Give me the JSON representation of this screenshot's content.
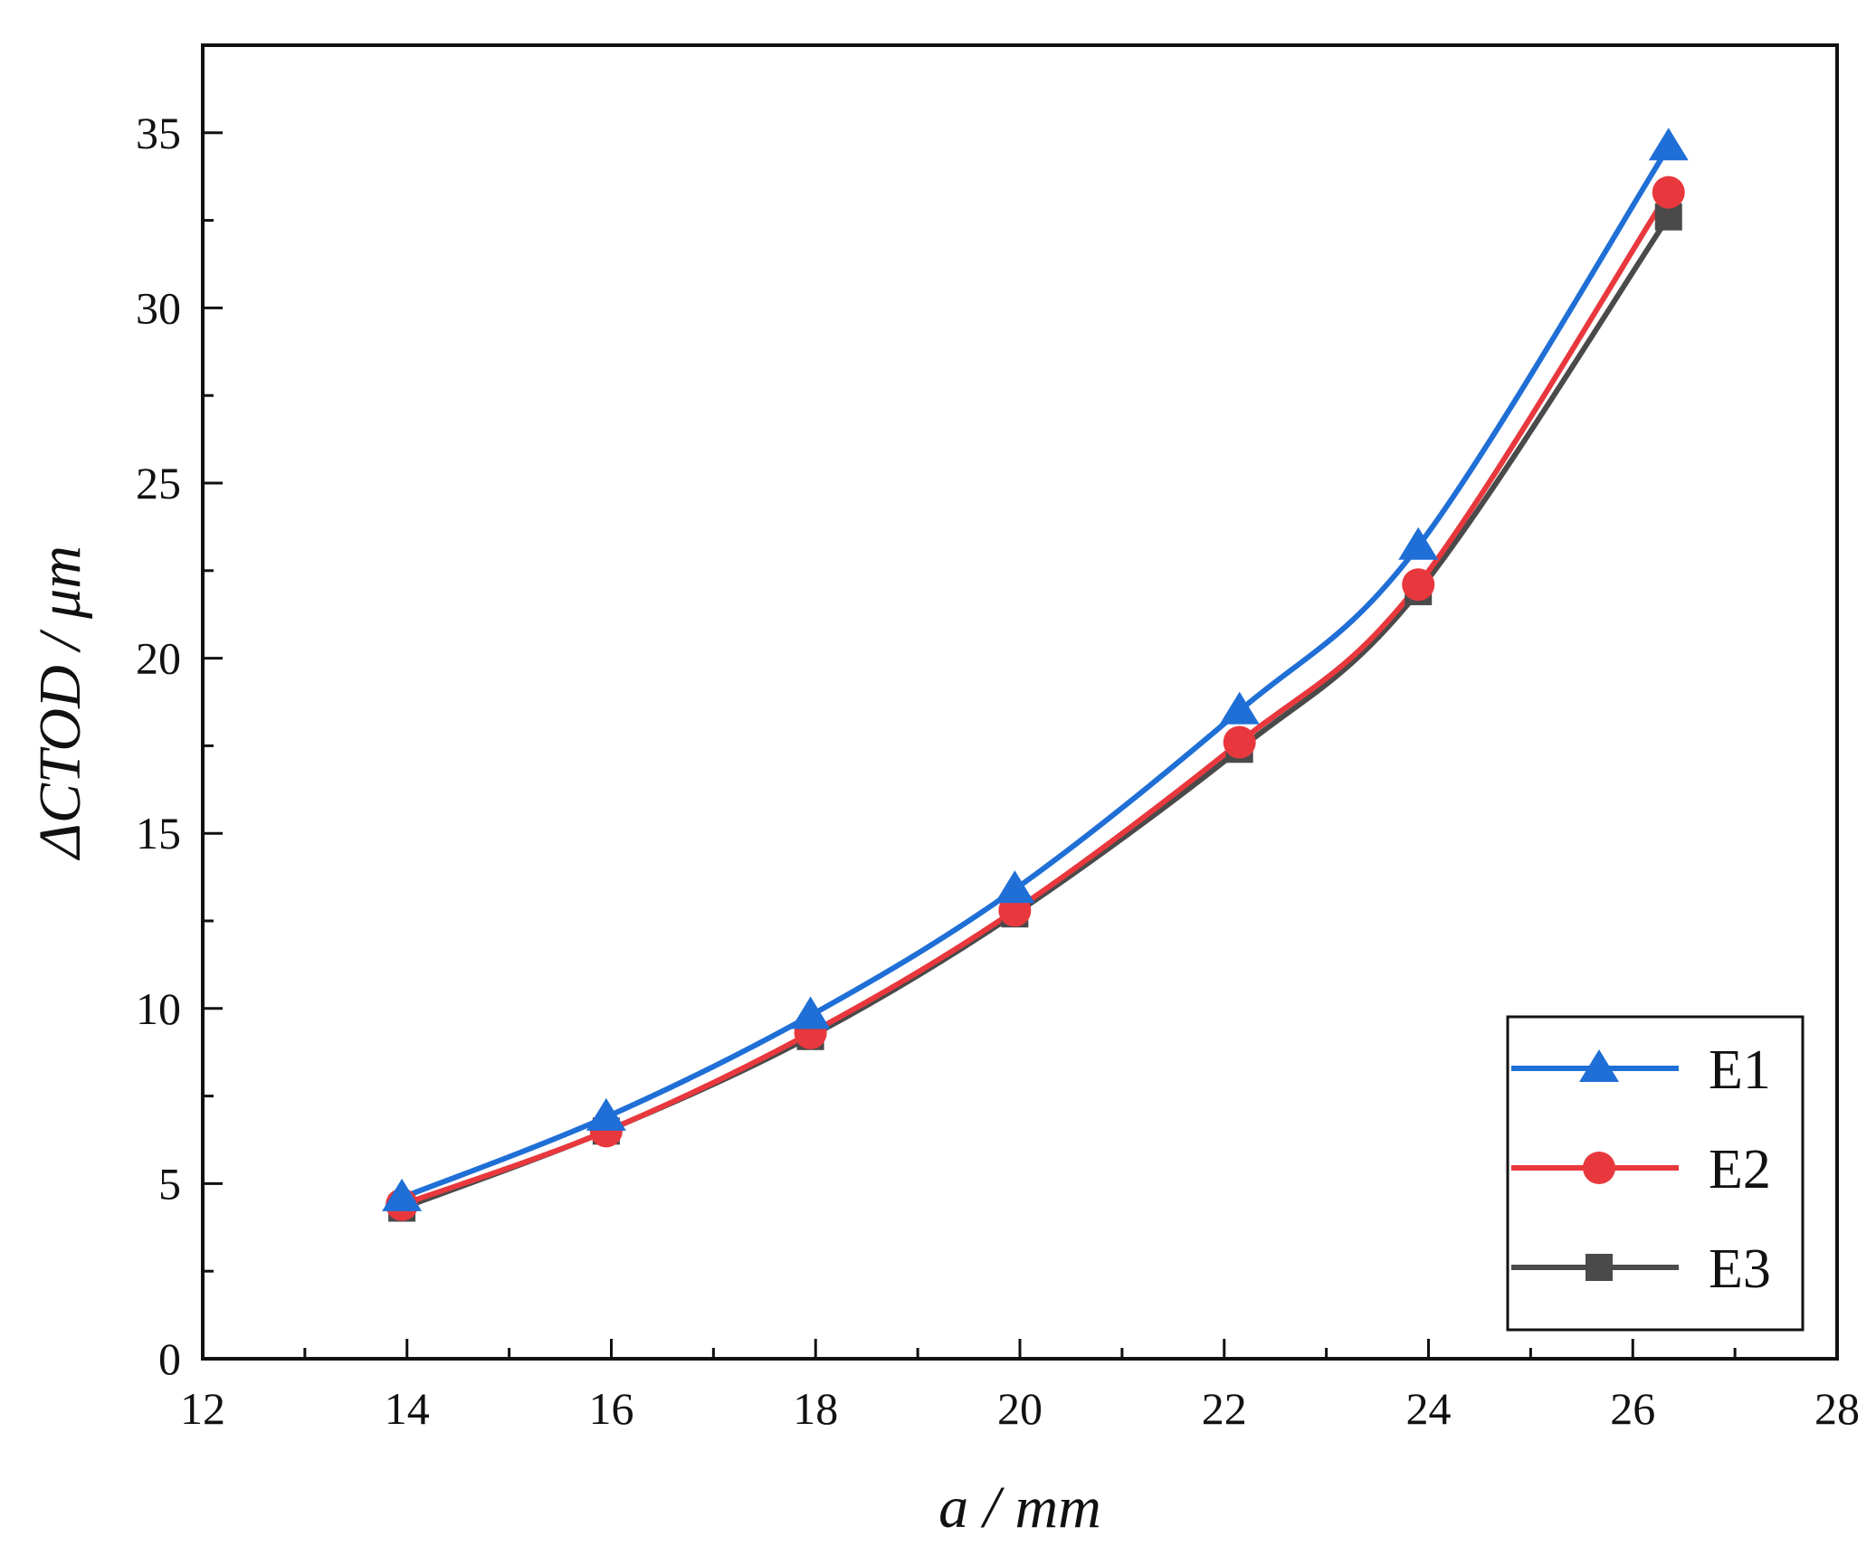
{
  "chart_data": {
    "type": "line",
    "title": "",
    "xlabel": "a / mm",
    "ylabel": "ΔCTOD / μm",
    "xlim": [
      12,
      28
    ],
    "ylim": [
      0,
      37.5
    ],
    "xticks": [
      12,
      14,
      16,
      18,
      20,
      22,
      24,
      26,
      28
    ],
    "yticks": [
      0,
      5,
      10,
      15,
      20,
      25,
      30,
      35
    ],
    "grid": false,
    "legend_position": "bottom-right",
    "series": [
      {
        "name": "E1",
        "marker": "triangle",
        "color": "#1f6fd6",
        "x": [
          13.95,
          15.95,
          17.95,
          19.95,
          22.15,
          23.9,
          26.35
        ],
        "y": [
          4.6,
          6.9,
          9.8,
          13.4,
          18.5,
          23.2,
          34.6
        ]
      },
      {
        "name": "E2",
        "marker": "circle",
        "color": "#e8383d",
        "x": [
          13.95,
          15.95,
          17.95,
          19.95,
          22.15,
          23.9,
          26.35
        ],
        "y": [
          4.4,
          6.5,
          9.3,
          12.8,
          17.6,
          22.1,
          33.3
        ]
      },
      {
        "name": "E3",
        "marker": "square",
        "color": "#4a4a4a",
        "x": [
          13.95,
          15.95,
          17.95,
          19.95,
          22.15,
          23.9,
          26.35
        ],
        "y": [
          4.3,
          6.5,
          9.2,
          12.7,
          17.4,
          21.9,
          32.6
        ]
      }
    ]
  }
}
